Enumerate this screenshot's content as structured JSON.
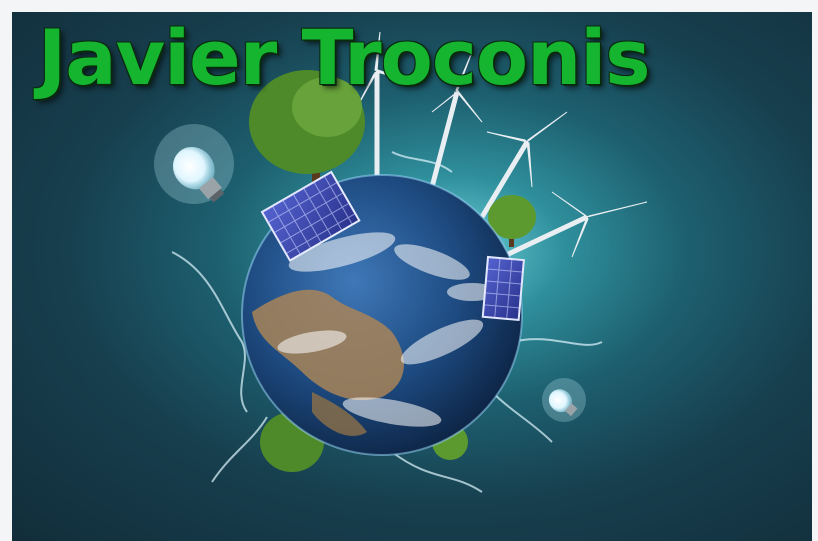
{
  "title": "Javier Troconis",
  "colors": {
    "title_text": "#16b52f",
    "background_glow": "#6fd2dc",
    "background_dark": "#122d3a",
    "ocean": "#1f4f86",
    "land": "#a88458",
    "solar_panel": "#3d4bb8",
    "foliage": "#4e8a2a"
  },
  "scene": {
    "subject": "earth-globe-icon",
    "elements": [
      "light-bulb-icon",
      "wind-turbine-icon",
      "solar-panel-icon",
      "tree-icon",
      "water-splash-icon"
    ]
  }
}
